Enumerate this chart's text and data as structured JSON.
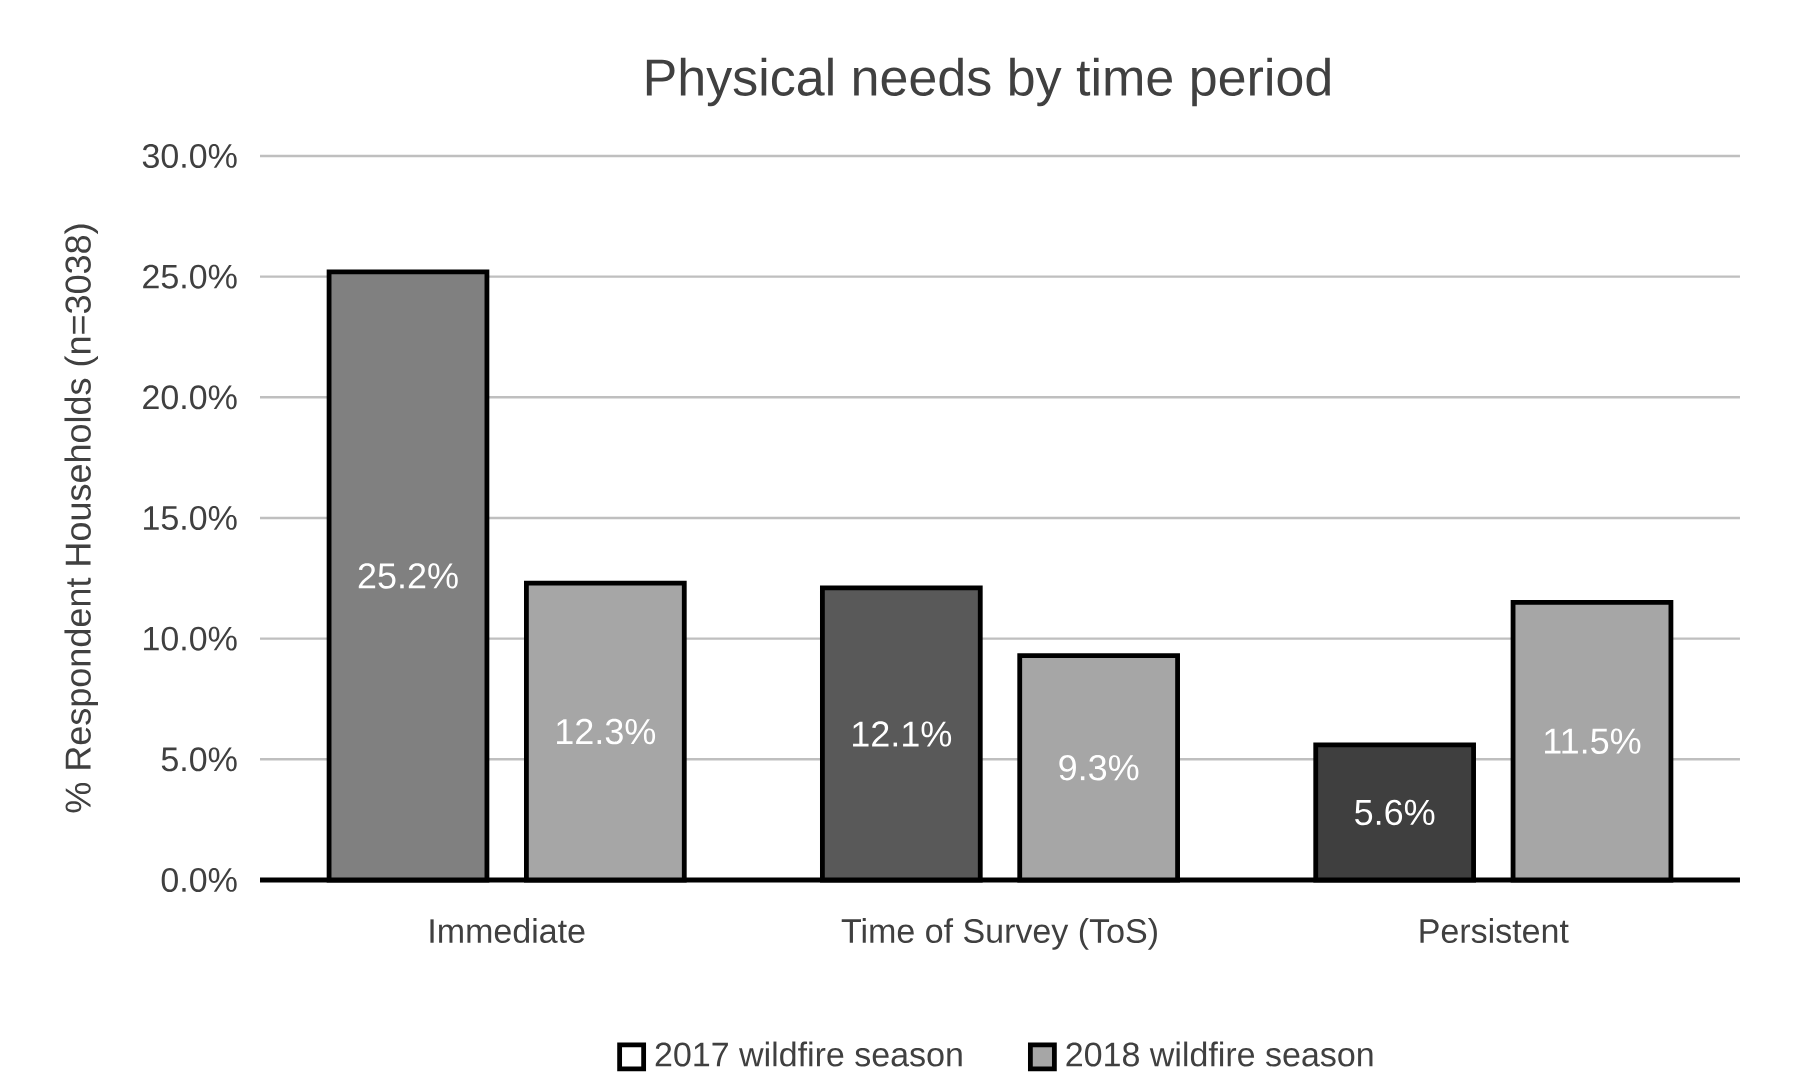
{
  "chart_data": {
    "type": "bar",
    "title": "Physical needs by time period",
    "ylabel": "% Respondent Households (n=3038)",
    "categories": [
      "Immediate",
      "Time of Survey (ToS)",
      "Persistent"
    ],
    "series": [
      {
        "name": "2017 wildfire season",
        "color": "#ffffff",
        "colors": [
          "#808080",
          "#595959",
          "#3f3f3f"
        ],
        "values": [
          25.2,
          12.1,
          5.6
        ],
        "value_labels": [
          "25.2%",
          "12.1%",
          "5.6%"
        ]
      },
      {
        "name": "2018 wildfire season",
        "color": "#a6a6a6",
        "colors": [
          "#a6a6a6",
          "#a6a6a6",
          "#a6a6a6"
        ],
        "values": [
          12.3,
          9.3,
          11.5
        ],
        "value_labels": [
          "12.3%",
          "9.3%",
          "11.5%"
        ]
      }
    ],
    "ylim": [
      0,
      30
    ],
    "yticks": [
      {
        "value": 0,
        "label": "0.0%"
      },
      {
        "value": 5,
        "label": "5.0%"
      },
      {
        "value": 10,
        "label": "10.0%"
      },
      {
        "value": 15,
        "label": "15.0%"
      },
      {
        "value": 20,
        "label": "20.0%"
      },
      {
        "value": 25,
        "label": "25.0%"
      },
      {
        "value": 30,
        "label": "30.0%"
      }
    ],
    "grid": "y",
    "legend": "bottom"
  }
}
